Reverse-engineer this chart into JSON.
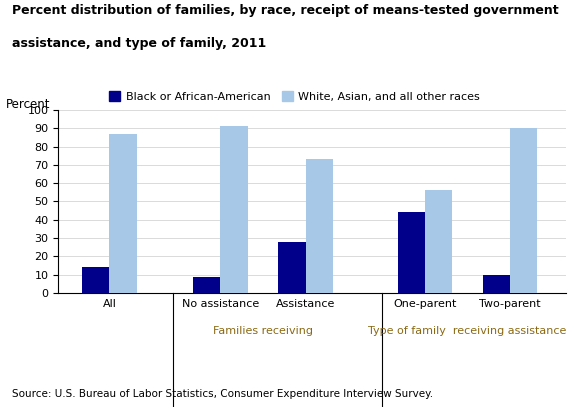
{
  "title_line1": "Percent distribution of families, by race, receipt of means-tested government",
  "title_line2": "assistance, and type of family, 2011",
  "ylabel": "Percent",
  "ylim": [
    0,
    100
  ],
  "yticks": [
    0,
    10,
    20,
    30,
    40,
    50,
    60,
    70,
    80,
    90,
    100
  ],
  "groups": [
    {
      "label": "All",
      "black": 14,
      "white": 87,
      "section": 0
    },
    {
      "label": "No assistance",
      "black": 9,
      "white": 91,
      "section": 1
    },
    {
      "label": "Assistance",
      "black": 28,
      "white": 73,
      "section": 1
    },
    {
      "label": "One-parent",
      "black": 44,
      "white": 56,
      "section": 2
    },
    {
      "label": "Two-parent",
      "black": 10,
      "white": 90,
      "section": 2
    }
  ],
  "section_labels": [
    "",
    "Families receiving",
    "Type of family  receiving assistance"
  ],
  "color_black": "#00008B",
  "color_white": "#A8C8E8",
  "legend_black": "Black or African-American",
  "legend_white": "White, Asian, and all other races",
  "source": "Source: U.S. Bureau of Labor Statistics, Consumer Expenditure Interview Survey.",
  "section_label_color": "#8B6914",
  "bar_width": 0.32
}
